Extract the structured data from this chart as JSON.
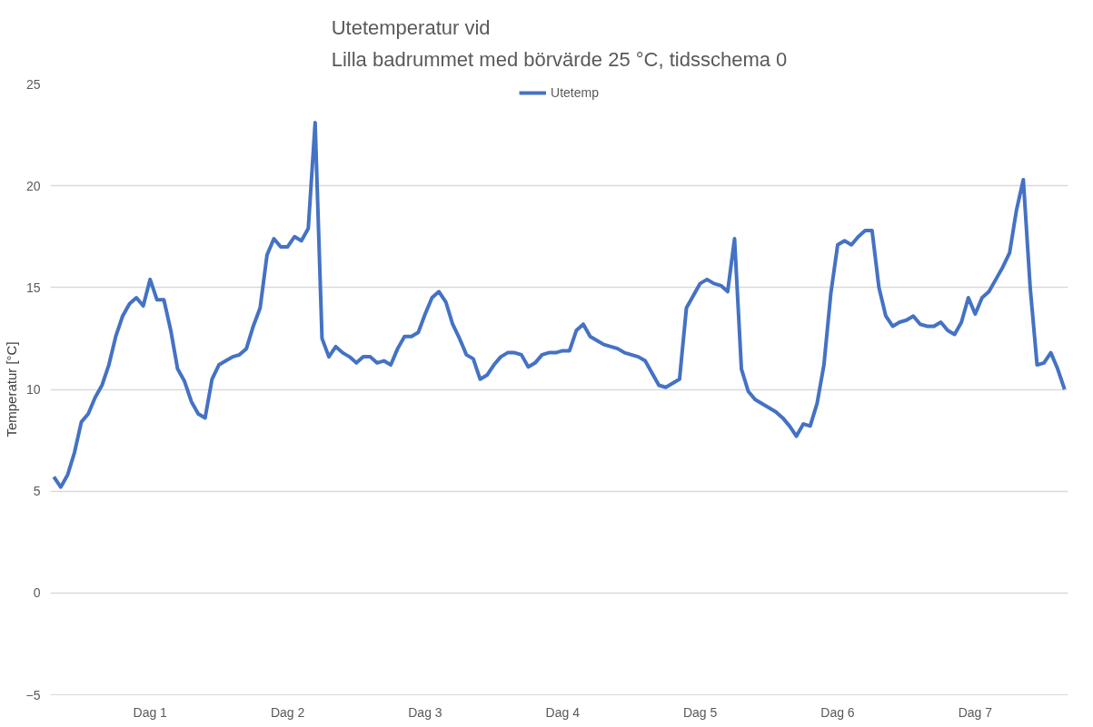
{
  "chart_data": {
    "type": "line",
    "title": "Utetemperatur vid\nLilla badrummet med börvärde 25 °C, tidsschema 0",
    "ylabel": "Temperatur [°C]",
    "categories": [
      null,
      null,
      null,
      null,
      null,
      null,
      null,
      null,
      null,
      null,
      null,
      null,
      null,
      null,
      "Dag 1",
      null,
      null,
      null,
      null,
      null,
      null,
      null,
      null,
      null,
      null,
      null,
      null,
      null,
      null,
      null,
      null,
      null,
      null,
      null,
      "Dag 2",
      null,
      null,
      null,
      null,
      null,
      null,
      null,
      null,
      null,
      null,
      null,
      null,
      null,
      null,
      null,
      null,
      null,
      null,
      null,
      "Dag 3",
      null,
      null,
      null,
      null,
      null,
      null,
      null,
      null,
      null,
      null,
      null,
      null,
      null,
      null,
      null,
      null,
      null,
      null,
      null,
      "Dag 4",
      null,
      null,
      null,
      null,
      null,
      null,
      null,
      null,
      null,
      null,
      null,
      null,
      null,
      null,
      null,
      null,
      null,
      null,
      null,
      "Dag 5",
      null,
      null,
      null,
      null,
      null,
      null,
      null,
      null,
      null,
      null,
      null,
      null,
      null,
      null,
      null,
      null,
      null,
      null,
      null,
      "Dag 6",
      null,
      null,
      null,
      null,
      null,
      null,
      null,
      null,
      null,
      null,
      null,
      null,
      null,
      null,
      null,
      null,
      null,
      null,
      null,
      "Dag 7",
      null,
      null,
      null,
      null,
      null,
      null,
      null,
      null,
      null,
      null,
      null,
      null,
      null
    ],
    "ylim": [
      -5,
      25
    ],
    "yticks": [
      -5,
      0,
      5,
      10,
      15,
      20,
      25
    ],
    "grid": "y",
    "legend": "top",
    "line_style": "solid",
    "series": [
      {
        "name": "Utetemp",
        "color": "#4472c4",
        "values": [
          5.7,
          5.2,
          5.8,
          6.9,
          8.4,
          8.8,
          9.6,
          10.2,
          11.2,
          12.6,
          13.6,
          14.2,
          14.5,
          14.1,
          15.4,
          14.4,
          14.4,
          12.9,
          11.0,
          10.4,
          9.4,
          8.8,
          8.6,
          10.5,
          11.2,
          11.4,
          11.6,
          11.7,
          12.0,
          13.1,
          14.0,
          16.6,
          17.4,
          17.0,
          17.0,
          17.5,
          17.3,
          17.9,
          23.1,
          12.5,
          11.6,
          12.1,
          11.8,
          11.6,
          11.3,
          11.6,
          11.6,
          11.3,
          11.4,
          11.2,
          12.0,
          12.6,
          12.6,
          12.8,
          13.7,
          14.5,
          14.8,
          14.3,
          13.2,
          12.5,
          11.7,
          11.5,
          10.5,
          10.7,
          11.2,
          11.6,
          11.8,
          11.8,
          11.7,
          11.1,
          11.3,
          11.7,
          11.8,
          11.8,
          11.9,
          11.9,
          12.9,
          13.2,
          12.6,
          12.4,
          12.2,
          12.1,
          12.0,
          11.8,
          11.7,
          11.6,
          11.4,
          10.8,
          10.2,
          10.1,
          10.3,
          10.5,
          14.0,
          14.6,
          15.2,
          15.4,
          15.2,
          15.1,
          14.8,
          17.4,
          11.0,
          9.9,
          9.5,
          9.3,
          9.1,
          8.9,
          8.6,
          8.2,
          7.7,
          8.3,
          8.2,
          9.3,
          11.2,
          14.7,
          17.1,
          17.3,
          17.1,
          17.5,
          17.8,
          17.8,
          15.0,
          13.6,
          13.1,
          13.3,
          13.4,
          13.6,
          13.2,
          13.1,
          13.1,
          13.3,
          12.9,
          12.7,
          13.3,
          14.5,
          13.7,
          14.5,
          14.8,
          15.4,
          16.0,
          16.7,
          18.8,
          20.3,
          15.0,
          11.2,
          11.3,
          11.8,
          11.0,
          10.0
        ]
      }
    ]
  }
}
